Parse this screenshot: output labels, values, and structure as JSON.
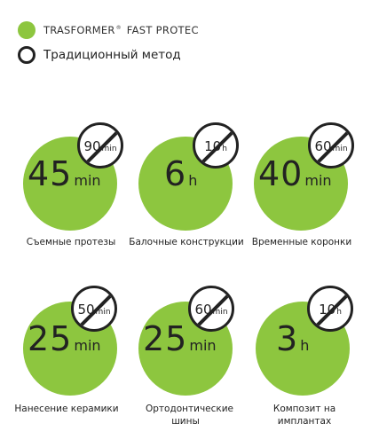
{
  "colors": {
    "accent": "#8dc63f",
    "ink": "#222222"
  },
  "legend": {
    "brand": "TRASFORMER",
    "brand_mark": "®",
    "product": "FAST PROTEC",
    "traditional": "Традиционный метод"
  },
  "cards": [
    {
      "time_value": "45",
      "time_unit": "min",
      "old_value": "90",
      "old_unit": "min",
      "caption": "Съемные протезы"
    },
    {
      "time_value": "6",
      "time_unit": "h",
      "old_value": "10",
      "old_unit": "h",
      "caption": "Балочные конструкции"
    },
    {
      "time_value": "40",
      "time_unit": "min",
      "old_value": "60",
      "old_unit": "min",
      "caption": "Временные коронки"
    },
    {
      "time_value": "25",
      "time_unit": "min",
      "old_value": "50",
      "old_unit": "min",
      "caption": "Нанесение керамики"
    },
    {
      "time_value": "25",
      "time_unit": "min",
      "old_value": "60",
      "old_unit": "min",
      "caption": "Ортодонтические шины"
    },
    {
      "time_value": "3",
      "time_unit": "h",
      "old_value": "10",
      "old_unit": "h",
      "caption": "Композит на имплантах"
    }
  ]
}
